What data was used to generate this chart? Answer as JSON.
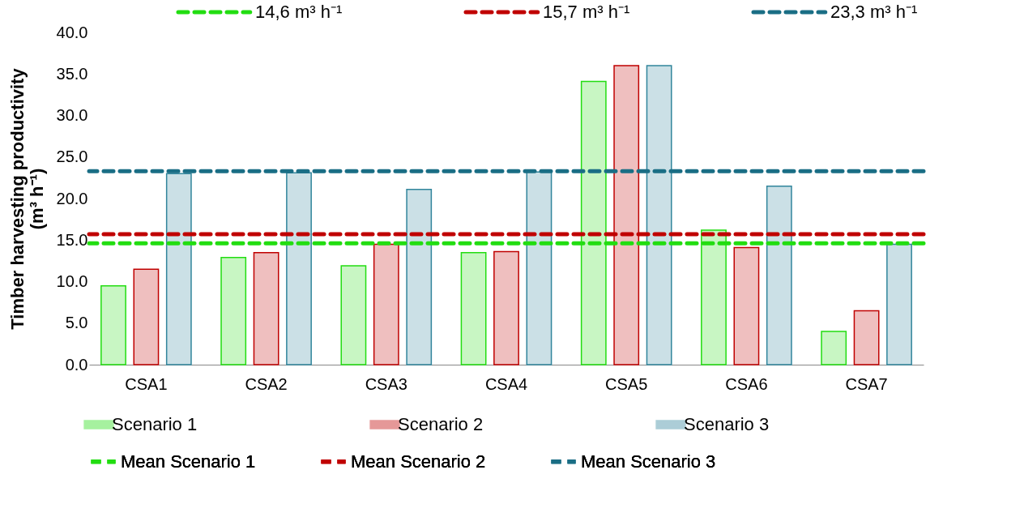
{
  "chart_data": {
    "type": "bar",
    "ylabel": "Timber harvesting productivity\n(m³ h⁻¹)",
    "categories": [
      "CSA1",
      "CSA2",
      "CSA3",
      "CSA4",
      "CSA5",
      "CSA6",
      "CSA7"
    ],
    "series": [
      {
        "name": "Scenario 1",
        "color": "#22dd11",
        "values": [
          9.5,
          12.9,
          11.9,
          13.5,
          34.1,
          16.2,
          4.0
        ]
      },
      {
        "name": "Scenario 2",
        "color": "#c00000",
        "values": [
          11.5,
          13.5,
          14.5,
          13.6,
          36.0,
          14.1,
          6.5
        ]
      },
      {
        "name": "Scenario 3",
        "color": "#31859c",
        "values": [
          23.0,
          23.1,
          21.1,
          23.2,
          36.0,
          21.5,
          14.5
        ]
      }
    ],
    "ylim": [
      0,
      40
    ],
    "yticks": [
      {
        "value": 0,
        "label": "0.0"
      },
      {
        "value": 5,
        "label": "5.0"
      },
      {
        "value": 10,
        "label": "10.0"
      },
      {
        "value": 15,
        "label": "15.0"
      },
      {
        "value": 20,
        "label": "20.0"
      },
      {
        "value": 25,
        "label": "25.0"
      },
      {
        "value": 30,
        "label": "30.0"
      },
      {
        "value": 35,
        "label": "35.0"
      },
      {
        "value": 40,
        "label": "40.0"
      }
    ],
    "ref_lines": [
      {
        "axis": "y",
        "value": 14.6,
        "label": "Mean Scenario 1",
        "color": "#22dd11",
        "line_style": "dashed"
      },
      {
        "axis": "y",
        "value": 15.7,
        "label": "Mean Scenario 2",
        "color": "#c00000",
        "line_style": "dashed"
      },
      {
        "axis": "y",
        "value": 23.3,
        "label": "Mean Scenario 3",
        "color": "#1a6e85",
        "line_style": "dashed"
      }
    ],
    "annotations": [
      "14,6 m³ h⁻¹",
      "15,7 m³ h⁻¹",
      "23,3 m³ h⁻¹"
    ],
    "grid": false,
    "legend": "bottom"
  }
}
